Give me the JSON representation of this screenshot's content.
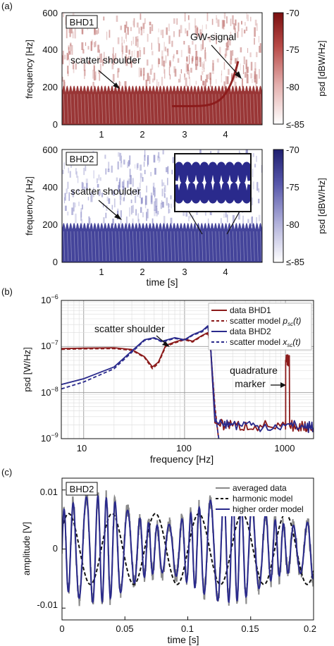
{
  "colors": {
    "bhd1": "#8b1a1a",
    "bhd2": "#2a2a8c",
    "grey": "#8a8a8a",
    "black": "#111111"
  },
  "panel_a": {
    "label": "(a)",
    "spec1": {
      "box_label": "BHD1",
      "ann_scatter": "scatter shoulder",
      "ann_gw": "GW-signal",
      "ylabel": "frequency [Hz]",
      "yticks": [
        "0",
        "200",
        "400",
        "600"
      ]
    },
    "spec2": {
      "box_label": "BHD2",
      "ann_scatter": "scatter shoulder",
      "ylabel": "frequency [Hz]",
      "yticks": [
        "0",
        "200",
        "400",
        "600"
      ]
    },
    "xticks": [
      "1",
      "2",
      "3",
      "4"
    ],
    "xlabel": "time [s]",
    "cbar1": {
      "label": "psd [dBW/Hz]",
      "ticks": [
        "-70",
        "-75",
        "-80",
        "≤-85"
      ]
    },
    "cbar2": {
      "label": "psd [dBW/Hz]",
      "ticks": [
        "-70",
        "-75",
        "-80",
        "≤-85"
      ]
    }
  },
  "panel_b": {
    "label": "(b)",
    "ylabel": "psd [W/Hz]",
    "xlabel": "frequency [Hz]",
    "xticks": [
      "10",
      "100",
      "1000"
    ],
    "ytick_base": "10",
    "ytick_exps": [
      "−6",
      "−7",
      "−8",
      "−9"
    ],
    "ann_scatter": "scatter shoulder",
    "ann_quad_1": "quadrature",
    "ann_quad_2": "marker",
    "legend": [
      {
        "text": "data BHD1",
        "style": "solid",
        "color": "#8b1a1a"
      },
      {
        "text": "scatter model",
        "sub": "p",
        "subsub": "sc",
        "arg": "(t)",
        "style": "dashed",
        "color": "#8b1a1a"
      },
      {
        "text": "data BHD2",
        "style": "solid",
        "color": "#2a2a8c"
      },
      {
        "text": "scatter model",
        "sub": "x",
        "subsub": "sc",
        "arg": "(t)",
        "style": "dashed",
        "color": "#2a2a8c"
      }
    ]
  },
  "panel_c": {
    "label": "(c)",
    "box_label": "BHD2",
    "ylabel": "amplitude [V]",
    "xlabel": "time [s]",
    "xticks": [
      "0",
      "0.05",
      "0.1",
      "0.15",
      "0.2"
    ],
    "yticks": [
      "0.01",
      "0",
      "-0.01"
    ],
    "legend": [
      {
        "text": "averaged data",
        "style": "solid",
        "color": "#8a8a8a"
      },
      {
        "text": "harmonic model",
        "style": "dashed",
        "color": "#111111"
      },
      {
        "text": "higher order model",
        "style": "solid",
        "color": "#2a2a8c"
      }
    ]
  },
  "chart_data": [
    {
      "type": "heatmap",
      "title": "BHD1",
      "xlabel": "time [s]",
      "ylabel": "frequency [Hz]",
      "xlim": [
        0,
        5
      ],
      "ylim": [
        0,
        600
      ],
      "colorbar": {
        "label": "psd [dBW/Hz]",
        "range": [
          -85,
          -70
        ]
      },
      "annotations": [
        "scatter shoulder",
        "GW-signal"
      ]
    },
    {
      "type": "heatmap",
      "title": "BHD2",
      "xlabel": "time [s]",
      "ylabel": "frequency [Hz]",
      "xlim": [
        0,
        5
      ],
      "ylim": [
        0,
        600
      ],
      "colorbar": {
        "label": "psd [dBW/Hz]",
        "range": [
          -85,
          -70
        ]
      },
      "annotations": [
        "scatter shoulder"
      ]
    },
    {
      "type": "line",
      "xlabel": "frequency [Hz]",
      "ylabel": "psd [W/Hz]",
      "xscale": "log",
      "yscale": "log",
      "xlim": [
        6,
        1900
      ],
      "ylim": [
        1e-09,
        1e-06
      ],
      "grid": true,
      "legend": "top-right",
      "annotations": [
        "scatter shoulder",
        "quadrature marker"
      ],
      "series": [
        {
          "name": "data BHD1",
          "x": [
            6,
            10,
            20,
            30,
            40,
            48,
            55,
            65,
            80,
            100,
            120,
            150,
            170,
            180,
            200,
            220,
            300,
            500,
            1000,
            1005,
            1100,
            1500,
            1900
          ],
          "y": [
            9e-08,
            9.2e-08,
            9.4e-08,
            8.6e-08,
            6e-08,
            3.6e-08,
            4.6e-08,
            1.05e-07,
            1.25e-07,
            1.45e-07,
            1.3e-07,
            1.75e-07,
            2e-07,
            1.2e-07,
            2.2e-09,
            2e-09,
            1.9e-09,
            1.9e-09,
            1.9e-09,
            5e-08,
            1.9e-09,
            1.8e-09,
            1.7e-09
          ]
        },
        {
          "name": "scatter model p_sc(t)",
          "x": [
            6,
            10,
            20,
            30,
            40,
            48,
            55,
            65,
            80,
            100,
            120,
            150,
            170,
            180,
            200,
            220
          ],
          "y": [
            8.7e-08,
            8.9e-08,
            9e-08,
            8.3e-08,
            5.8e-08,
            3.3e-08,
            4.3e-08,
            1e-07,
            1.2e-07,
            1.4e-07,
            1.25e-07,
            1.7e-07,
            1.9e-07,
            1.1e-07,
            5e-09,
            8e-10
          ]
        },
        {
          "name": "data BHD2",
          "x": [
            6,
            10,
            20,
            30,
            40,
            50,
            60,
            80,
            100,
            120,
            150,
            170,
            180,
            200,
            220,
            300,
            500,
            1000,
            1500,
            1900
          ],
          "y": [
            1.5e-08,
            2e-08,
            3.6e-08,
            8e-08,
            1.4e-07,
            1.55e-07,
            1.3e-07,
            1.55e-07,
            1.4e-07,
            1.8e-07,
            2.2e-07,
            2.8e-07,
            1.3e-07,
            2.4e-09,
            2.1e-09,
            2e-09,
            1.9e-09,
            1.9e-09,
            1.8e-09,
            1.7e-09
          ]
        },
        {
          "name": "scatter model x_sc(t)",
          "x": [
            6,
            10,
            20,
            30,
            40,
            50,
            60,
            80,
            100,
            120,
            150,
            170,
            180,
            200,
            220
          ],
          "y": [
            1.2e-08,
            1.7e-08,
            3.3e-08,
            7.5e-08,
            1.35e-07,
            1.5e-07,
            1.25e-07,
            1.5e-07,
            1.35e-07,
            1.75e-07,
            2.1e-07,
            2.7e-07,
            1.2e-07,
            4e-09,
            9e-10
          ]
        }
      ]
    },
    {
      "type": "line",
      "title": "BHD2",
      "xlabel": "time [s]",
      "ylabel": "amplitude [V]",
      "xlim": [
        0,
        0.2
      ],
      "ylim": [
        -0.012,
        0.012
      ],
      "grid": false,
      "legend": "top-right",
      "series": [
        {
          "name": "averaged data",
          "model": "higher order + noise"
        },
        {
          "name": "harmonic model",
          "harmonic_frequency_hz": 29,
          "amplitude": 0.006
        },
        {
          "name": "higher order model",
          "fundamental_frequency_hz": 120,
          "amplitude": 0.009
        }
      ]
    }
  ]
}
